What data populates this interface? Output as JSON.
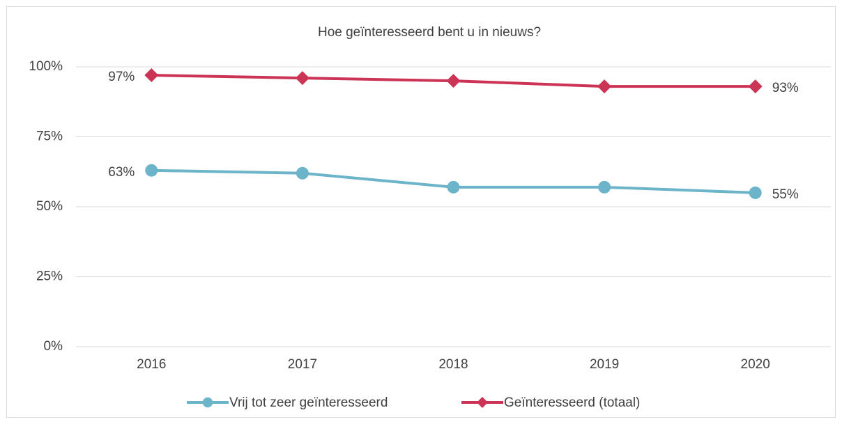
{
  "chart_data": {
    "type": "line",
    "title": "Hoe geïnteresseerd bent u in nieuws?",
    "categories": [
      "2016",
      "2017",
      "2018",
      "2019",
      "2020"
    ],
    "series": [
      {
        "name": "Vrij tot zeer geïnteresseerd",
        "color": "#6cb4c9",
        "marker": "circle",
        "values": [
          63,
          62,
          57,
          57,
          55
        ],
        "value_labels": [
          "63%",
          null,
          null,
          null,
          "55%"
        ]
      },
      {
        "name": "Geïnteresseerd (totaal)",
        "color": "#cc3456",
        "marker": "diamond",
        "values": [
          97,
          96,
          95,
          93,
          93
        ],
        "value_labels": [
          "97%",
          null,
          null,
          null,
          "93%"
        ]
      }
    ],
    "ylim": [
      0,
      100
    ],
    "yticks": [
      {
        "value": 0,
        "label": "0%"
      },
      {
        "value": 25,
        "label": "25%"
      },
      {
        "value": 50,
        "label": "50%"
      },
      {
        "value": 75,
        "label": "75%"
      },
      {
        "value": 100,
        "label": "100%"
      }
    ],
    "grid": true,
    "legend": "bottom"
  }
}
